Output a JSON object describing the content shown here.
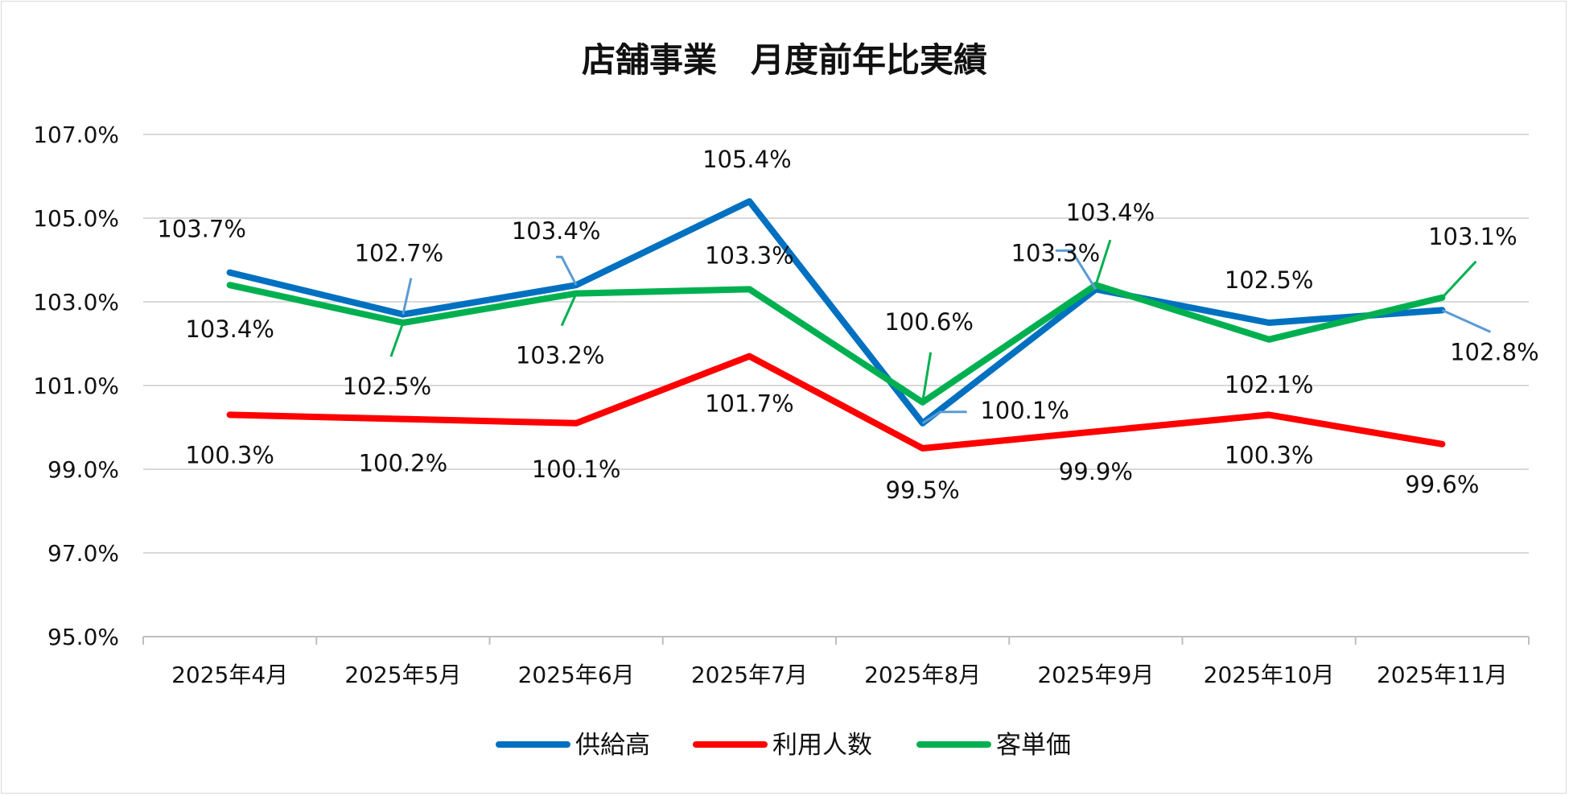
{
  "chart_data": {
    "type": "line",
    "title": "店舗事業　月度前年比実績",
    "xlabel": "",
    "ylabel": "",
    "ylim": [
      95.0,
      107.0
    ],
    "y_ticks": [
      95.0,
      97.0,
      99.0,
      101.0,
      103.0,
      105.0,
      107.0
    ],
    "y_tick_labels": [
      "95.0%",
      "97.0%",
      "99.0%",
      "101.0%",
      "103.0%",
      "105.0%",
      "107.0%"
    ],
    "grid": true,
    "legend_position": "bottom",
    "categories": [
      "2025年4月",
      "2025年5月",
      "2025年6月",
      "2025年7月",
      "2025年8月",
      "2025年9月",
      "2025年10月",
      "2025年11月"
    ],
    "series": [
      {
        "name": "供給高",
        "color": "#0070C0",
        "values": [
          103.7,
          102.7,
          103.4,
          105.4,
          100.1,
          103.3,
          102.5,
          102.8
        ],
        "labels": [
          "103.7%",
          "102.7%",
          "103.4%",
          "105.4%",
          "100.1%",
          "103.3%",
          "102.5%",
          "102.8%"
        ]
      },
      {
        "name": "利用人数",
        "color": "#FF0000",
        "values": [
          100.3,
          100.2,
          100.1,
          101.7,
          99.5,
          99.9,
          100.3,
          99.6
        ],
        "labels": [
          "100.3%",
          "100.2%",
          "100.1%",
          "101.7%",
          "99.5%",
          "99.9%",
          "100.3%",
          "99.6%"
        ]
      },
      {
        "name": "客単価",
        "color": "#00B050",
        "values": [
          103.4,
          102.5,
          103.2,
          103.3,
          100.6,
          103.4,
          102.1,
          103.1
        ],
        "labels": [
          "103.4%",
          "102.5%",
          "103.2%",
          "103.3%",
          "100.6%",
          "103.4%",
          "102.1%",
          "103.1%"
        ]
      }
    ]
  },
  "colors": {
    "grid": "#D9D9D9",
    "axis": "#BFBFBF",
    "leader_blue": "#5B9BD5",
    "leader_green": "#00B050"
  }
}
